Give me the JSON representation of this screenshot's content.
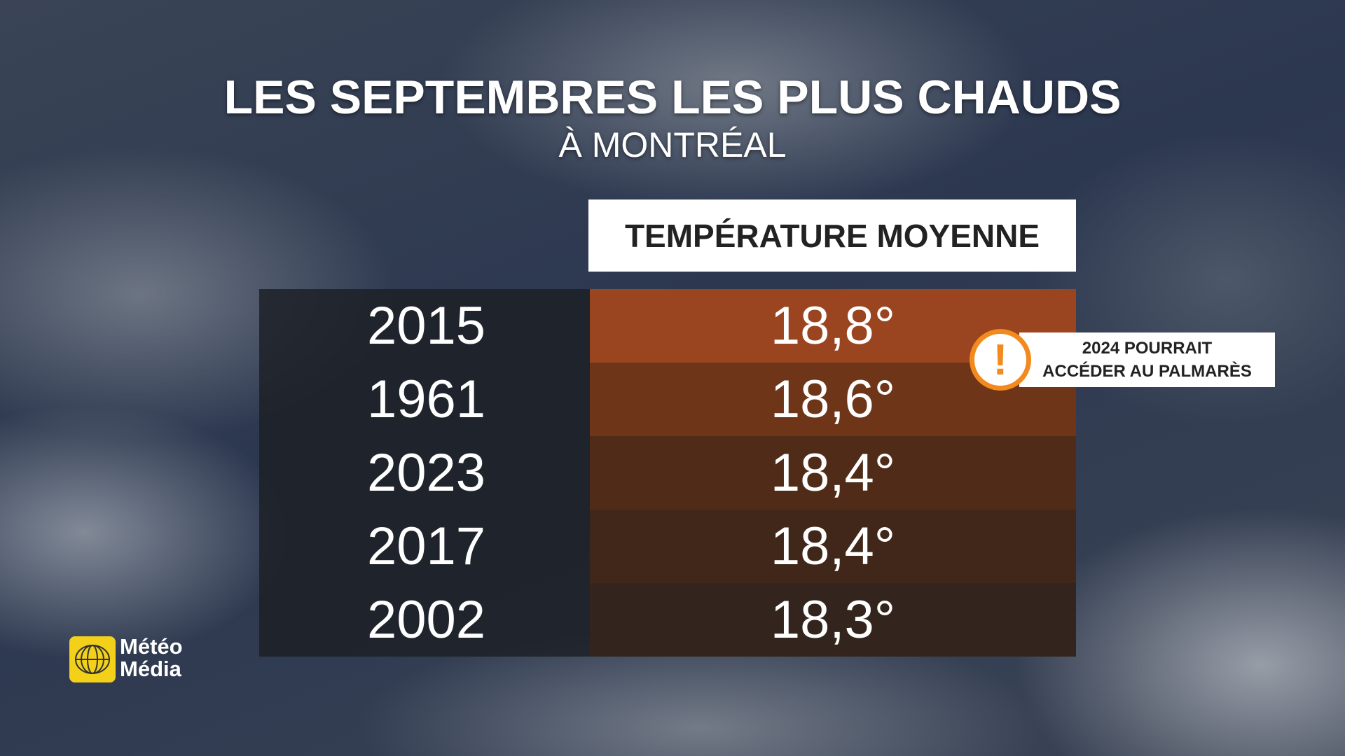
{
  "title": "LES SEPTEMBRES LES PLUS CHAUDS",
  "subtitle": "À MONTRÉAL",
  "table": {
    "header": "TEMPÉRATURE MOYENNE",
    "rows": [
      [
        "2015",
        "18,8°"
      ],
      [
        "1961",
        "18,6°"
      ],
      [
        "2023",
        "18,4°"
      ],
      [
        "2017",
        "18,4°"
      ],
      [
        "2002",
        "18,3°"
      ]
    ]
  },
  "callout": {
    "icon": "!",
    "lines": [
      "2024 POURRAIT",
      "ACCÉDER AU PALMARÈS"
    ]
  },
  "logo": {
    "lines": [
      "Météo",
      "Média"
    ]
  }
}
